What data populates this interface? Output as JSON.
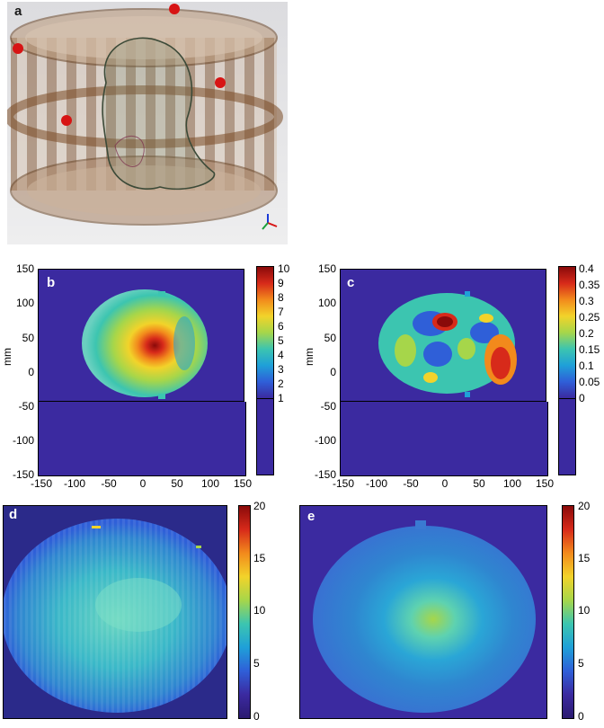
{
  "panels": {
    "a": {
      "label": "a"
    },
    "b": {
      "label": "b",
      "ylabel": "mm",
      "yticks": [
        "150",
        "100",
        "50",
        "0",
        "-50",
        "-100",
        "-150"
      ],
      "xticks": [
        "-150",
        "-100",
        "-50",
        "0",
        "50",
        "100",
        "150"
      ],
      "colorbar_ticks": [
        "10",
        "9",
        "8",
        "7",
        "6",
        "5",
        "4",
        "3",
        "2",
        "1"
      ]
    },
    "c": {
      "label": "c",
      "ylabel": "mm",
      "yticks": [
        "150",
        "100",
        "50",
        "0",
        "-50",
        "-100",
        "-150"
      ],
      "xticks": [
        "-150",
        "-100",
        "-50",
        "0",
        "50",
        "100",
        "150"
      ],
      "colorbar_ticks": [
        "0.4",
        "0.35",
        "0.3",
        "0.25",
        "0.2",
        "0.15",
        "0.1",
        "0.05",
        "0"
      ]
    },
    "d": {
      "label": "d",
      "colorbar_ticks": [
        "20",
        "15",
        "10",
        "5",
        "0"
      ]
    },
    "e": {
      "label": "e",
      "colorbar_ticks": [
        "20",
        "15",
        "10",
        "5",
        "0"
      ]
    }
  },
  "colors": {
    "background_field": "#2b3a9a",
    "colormap": [
      "#3b2aa0",
      "#2f5fd8",
      "#1fa0d8",
      "#3cc5b0",
      "#a6d64a",
      "#f2d32a",
      "#f28a1c",
      "#d72a1a",
      "#8a0a0a"
    ]
  }
}
